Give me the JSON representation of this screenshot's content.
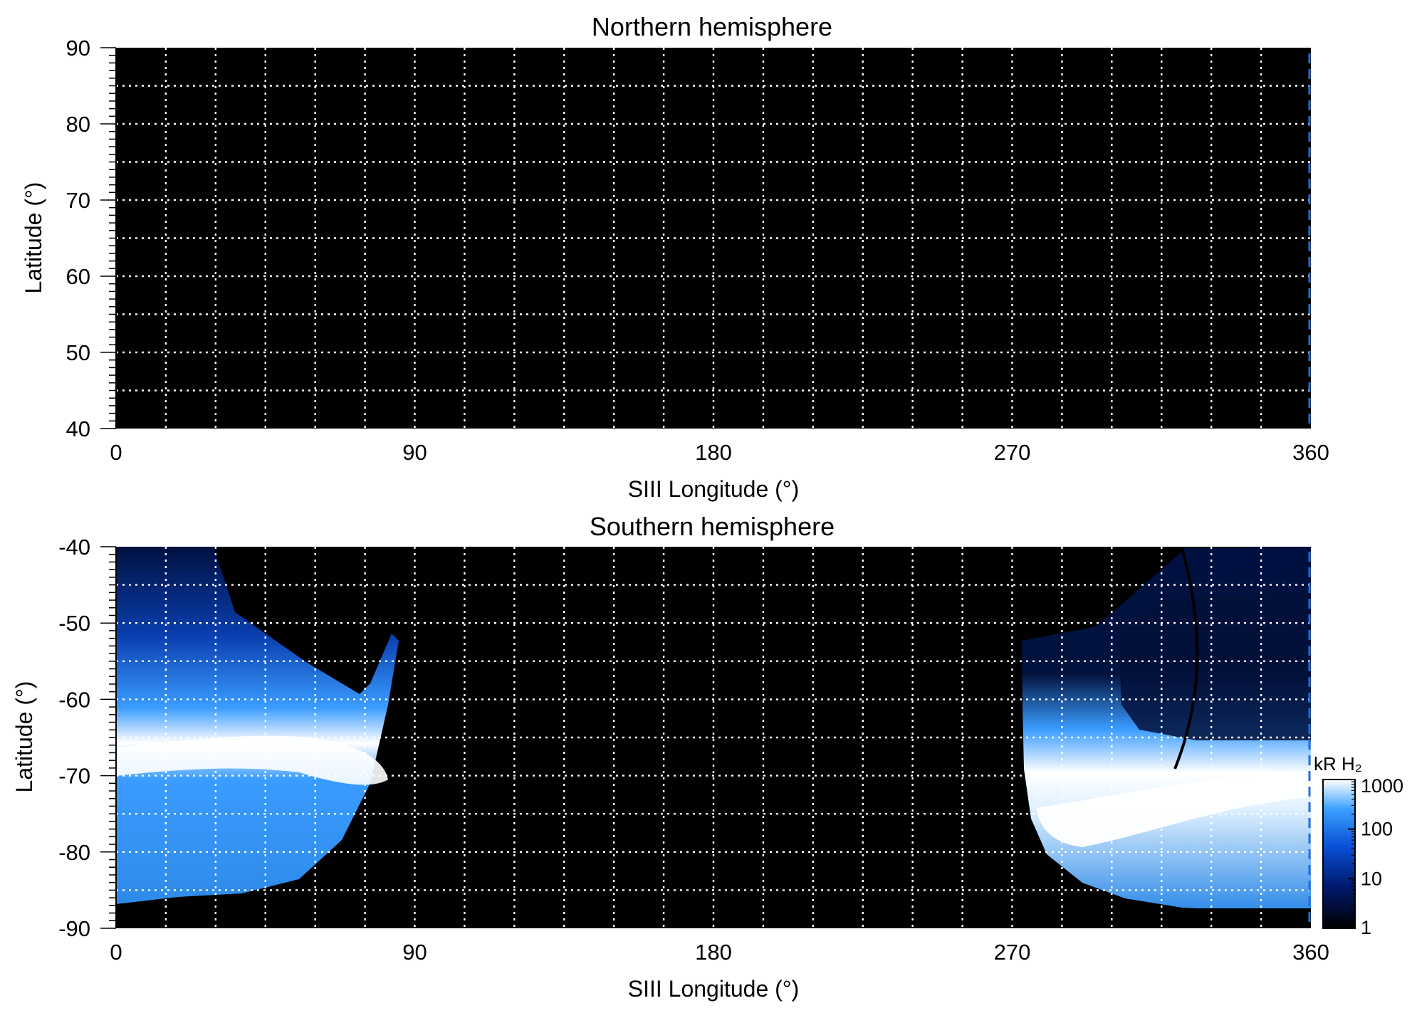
{
  "chart_data": [
    {
      "type": "heatmap",
      "title": "Northern hemisphere",
      "xlabel": "SIII Longitude (°)",
      "ylabel": "Latitude (°)",
      "xlim": [
        0,
        360
      ],
      "ylim": [
        40,
        90
      ],
      "xticks": [
        "0",
        "90",
        "180",
        "270",
        "360"
      ],
      "yticks": [
        "40",
        "50",
        "60",
        "70",
        "80",
        "90"
      ],
      "grid": true,
      "grid_step": {
        "x": 15,
        "y": 5
      },
      "background": "#000000",
      "emission_regions": []
    },
    {
      "type": "heatmap",
      "title": "Southern hemisphere",
      "xlabel": "SIII Longitude (°)",
      "ylabel": "Latitude (°)",
      "xlim": [
        0,
        360
      ],
      "ylim": [
        -90,
        -40
      ],
      "xticks": [
        "0",
        "90",
        "180",
        "270",
        "360"
      ],
      "yticks": [
        "-90",
        "-80",
        "-70",
        "-60",
        "-50",
        "-40"
      ],
      "grid": true,
      "grid_step": {
        "x": 15,
        "y": 5
      },
      "background": "#000000",
      "emission_regions": [
        {
          "name": "left-region",
          "main_oval": {
            "lon": [
              0,
              75
            ],
            "lat_center": [
              -69,
              -71
            ],
            "peak_kR": 1000
          },
          "poleward_kR": 10,
          "equatorward_kR": 200
        },
        {
          "name": "right-region",
          "main_oval": {
            "lon": [
              280,
              360
            ],
            "lat_center": [
              -76,
              -72
            ],
            "peak_kR": 1000
          },
          "poleward_kR": 10,
          "equatorward_kR": 200
        }
      ]
    }
  ],
  "colorbar": {
    "title": "kR H₂",
    "scale": "log",
    "range": [
      1,
      1000
    ],
    "ticks": [
      "1",
      "10",
      "100",
      "1000"
    ],
    "colors": [
      "#000000",
      "#001a6e",
      "#0a4fd6",
      "#3aa0ff",
      "#ffffff"
    ]
  }
}
